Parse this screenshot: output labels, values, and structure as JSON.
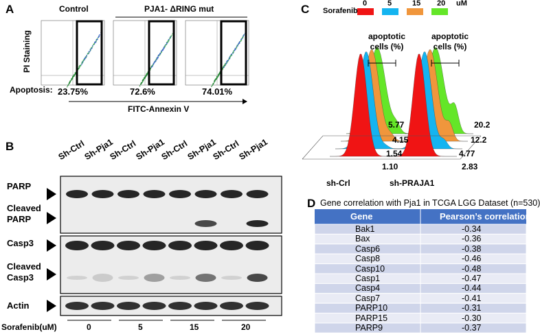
{
  "panel_a": {
    "letter": "A",
    "control": "Control",
    "mutant": "PJA1- ΔRING mut",
    "y_label": "PI Staining",
    "x_label": "FITC-Annexin V",
    "apoptosis_label": "Apoptosis:",
    "apoptosis_values": [
      "23.75%",
      "72.6%",
      "74.01%"
    ]
  },
  "panel_b": {
    "letter": "B",
    "lanes": [
      "Sh-Ctrl",
      "Sh-Pja1",
      "Sh-Ctrl",
      "Sh-Pja1",
      "Sh-Ctrl",
      "Sh-Pja1",
      "Sh-Ctrl",
      "Sh-Pja1"
    ],
    "proteins": [
      "PARP",
      "Cleaved PARP",
      "Casp3",
      "Cleaved Casp3",
      "Actin"
    ],
    "treatment_label": "Sorafenib(uM)",
    "doses": [
      "0",
      "5",
      "15",
      "20"
    ]
  },
  "panel_c": {
    "letter": "C",
    "legend_title": "Sorafenib",
    "legend": [
      {
        "label": "0",
        "color": "#f01414"
      },
      {
        "label": "5",
        "color": "#14b4f0"
      },
      {
        "label": "15",
        "color": "#f0963c"
      },
      {
        "label": "20",
        "color": "#64e628"
      }
    ],
    "unit": "uM",
    "annotations": [
      "apoptotic cells (%)",
      "apoptotic cells (%)"
    ],
    "groups": [
      {
        "name": "sh-Crl",
        "values": [
          "1.10",
          "1.54",
          "4.15",
          "5.77"
        ]
      },
      {
        "name": "sh-PRAJA1",
        "values": [
          "2.83",
          "4.77",
          "12.2",
          "20.2"
        ]
      }
    ]
  },
  "panel_d": {
    "letter": "D",
    "title": "Gene correlation with Pja1 in TCGA LGG Dataset (n=530)",
    "header": [
      "Gene",
      "Pearson’s correlation"
    ],
    "rows": [
      [
        "Bak1",
        "-0.34"
      ],
      [
        "Bax",
        "-0.36"
      ],
      [
        "Casp6",
        "-0.38"
      ],
      [
        "Casp8",
        "-0.46"
      ],
      [
        "Casp10",
        "-0.48"
      ],
      [
        "Casp1",
        "-0.47"
      ],
      [
        "Casp4",
        "-0.44"
      ],
      [
        "Casp7",
        "-0.41"
      ],
      [
        "PARP10",
        "-0.31"
      ],
      [
        "PARP15",
        "-0.30"
      ],
      [
        "PARP9",
        "-0.37"
      ]
    ]
  }
}
